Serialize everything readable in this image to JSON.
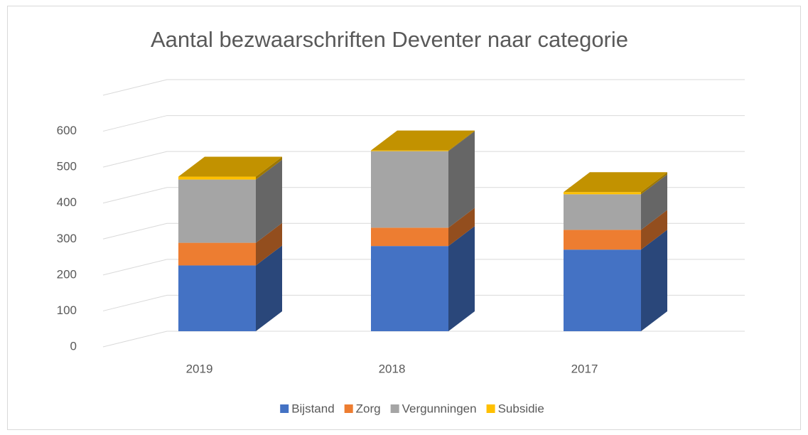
{
  "chart_data": {
    "type": "bar3d_stacked",
    "title": "Aantal bezwaarschriften Deventer naar categorie",
    "categories": [
      "2019",
      "2018",
      "2017"
    ],
    "series": [
      {
        "name": "Bijstand",
        "color": "#4472c4",
        "values": [
          183,
          237,
          227
        ]
      },
      {
        "name": "Zorg",
        "color": "#ed7d31",
        "values": [
          63,
          51,
          55
        ]
      },
      {
        "name": "Vergunningen",
        "color": "#a5a5a5",
        "values": [
          176,
          213,
          99
        ]
      },
      {
        "name": "Subsidie",
        "color": "#ffc000",
        "values": [
          8,
          2,
          6
        ]
      }
    ],
    "ylim": [
      0,
      700
    ],
    "yticks": [
      0,
      100,
      200,
      300,
      400,
      500,
      600
    ],
    "grid": true,
    "legend": "bottom"
  }
}
